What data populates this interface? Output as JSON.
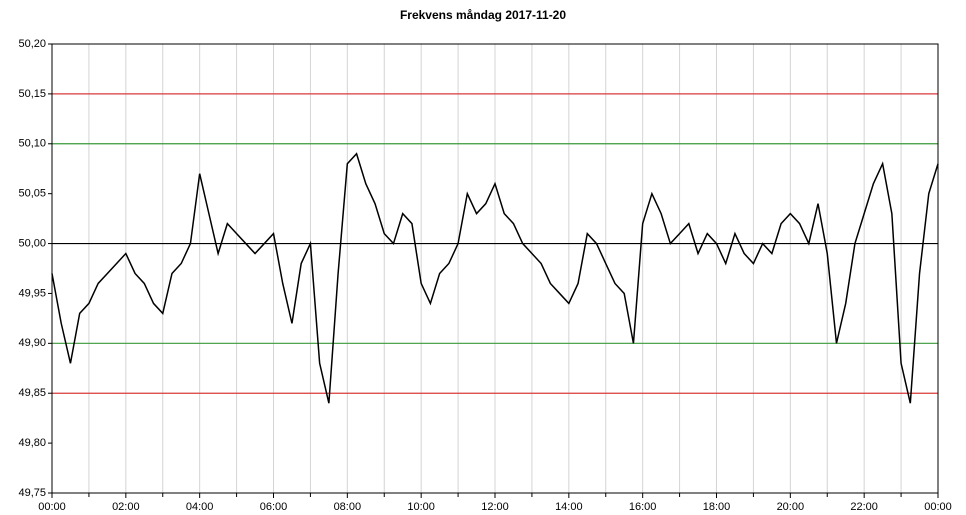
{
  "chart_data": {
    "type": "line",
    "title": "Frekvens måndag 2017-11-20",
    "x": [
      0,
      0.25,
      0.5,
      0.75,
      1,
      1.25,
      1.5,
      1.75,
      2,
      2.25,
      2.5,
      2.75,
      3,
      3.25,
      3.5,
      3.75,
      4,
      4.25,
      4.5,
      4.75,
      5,
      5.25,
      5.5,
      5.75,
      6,
      6.25,
      6.5,
      6.75,
      7,
      7.25,
      7.5,
      7.75,
      8,
      8.25,
      8.5,
      8.75,
      9,
      9.25,
      9.5,
      9.75,
      10,
      10.25,
      10.5,
      10.75,
      11,
      11.25,
      11.5,
      11.75,
      12,
      12.25,
      12.5,
      12.75,
      13,
      13.25,
      13.5,
      13.75,
      14,
      14.25,
      14.5,
      14.75,
      15,
      15.25,
      15.5,
      15.75,
      16,
      16.25,
      16.5,
      16.75,
      17,
      17.25,
      17.5,
      17.75,
      18,
      18.25,
      18.5,
      18.75,
      19,
      19.25,
      19.5,
      19.75,
      20,
      20.25,
      20.5,
      20.75,
      21,
      21.25,
      21.5,
      21.75,
      22,
      22.25,
      22.5,
      22.75,
      23,
      23.25,
      23.5,
      23.75,
      24
    ],
    "series": [
      {
        "color": "#000000",
        "values": [
          49.97,
          49.92,
          49.88,
          49.93,
          49.94,
          49.96,
          49.97,
          49.98,
          49.99,
          49.97,
          49.96,
          49.94,
          49.93,
          49.97,
          49.98,
          50.0,
          50.07,
          50.03,
          49.99,
          50.02,
          50.01,
          50.0,
          49.99,
          50.0,
          50.01,
          49.96,
          49.92,
          49.98,
          50.0,
          49.88,
          49.84,
          49.97,
          50.08,
          50.09,
          50.06,
          50.04,
          50.01,
          50.0,
          50.03,
          50.02,
          49.96,
          49.94,
          49.97,
          49.98,
          50.0,
          50.05,
          50.03,
          50.04,
          50.06,
          50.03,
          50.02,
          50.0,
          49.99,
          49.98,
          49.96,
          49.95,
          49.94,
          49.96,
          50.01,
          50.0,
          49.98,
          49.96,
          49.95,
          49.9,
          50.02,
          50.05,
          50.03,
          50.0,
          50.01,
          50.02,
          49.99,
          50.01,
          50.0,
          49.98,
          50.01,
          49.99,
          49.98,
          50.0,
          49.99,
          50.02,
          50.03,
          50.02,
          50.0,
          50.04,
          49.99,
          49.9,
          49.94,
          50.0,
          50.03,
          50.06,
          50.08,
          50.03,
          49.88,
          49.84,
          49.97,
          50.05,
          50.08
        ]
      }
    ],
    "xlim": [
      0,
      24
    ],
    "xticks": [
      {
        "value": 0,
        "label": "00:00"
      },
      {
        "value": 2,
        "label": "02:00"
      },
      {
        "value": 4,
        "label": "04:00"
      },
      {
        "value": 6,
        "label": "06:00"
      },
      {
        "value": 8,
        "label": "08:00"
      },
      {
        "value": 10,
        "label": "10:00"
      },
      {
        "value": 12,
        "label": "12:00"
      },
      {
        "value": 14,
        "label": "14:00"
      },
      {
        "value": 16,
        "label": "16:00"
      },
      {
        "value": 18,
        "label": "18:00"
      },
      {
        "value": 20,
        "label": "20:00"
      },
      {
        "value": 22,
        "label": "22:00"
      },
      {
        "value": 24,
        "label": "00:00"
      }
    ],
    "minor_xticks": [
      1,
      3,
      5,
      7,
      9,
      11,
      13,
      15,
      17,
      19,
      21,
      23
    ],
    "ylim": [
      49.75,
      50.2
    ],
    "yticks": [
      {
        "value": 49.75,
        "label": "49,75"
      },
      {
        "value": 49.8,
        "label": "49,80"
      },
      {
        "value": 49.85,
        "label": "49,85"
      },
      {
        "value": 49.9,
        "label": "49,90"
      },
      {
        "value": 49.95,
        "label": "49,95"
      },
      {
        "value": 50,
        "label": "50,00"
      },
      {
        "value": 50.05,
        "label": "50,05"
      },
      {
        "value": 50.1,
        "label": "50,10"
      },
      {
        "value": 50.15,
        "label": "50,15"
      },
      {
        "value": 50.2,
        "label": "50,20"
      }
    ],
    "reference_lines": [
      {
        "value": 50.15,
        "color": "#d83a3a"
      },
      {
        "value": 50.1,
        "color": "#3a9a3a"
      },
      {
        "value": 50,
        "color": "#000000"
      },
      {
        "value": 49.9,
        "color": "#3a9a3a"
      },
      {
        "value": 49.85,
        "color": "#d83a3a"
      }
    ],
    "grid": true
  }
}
